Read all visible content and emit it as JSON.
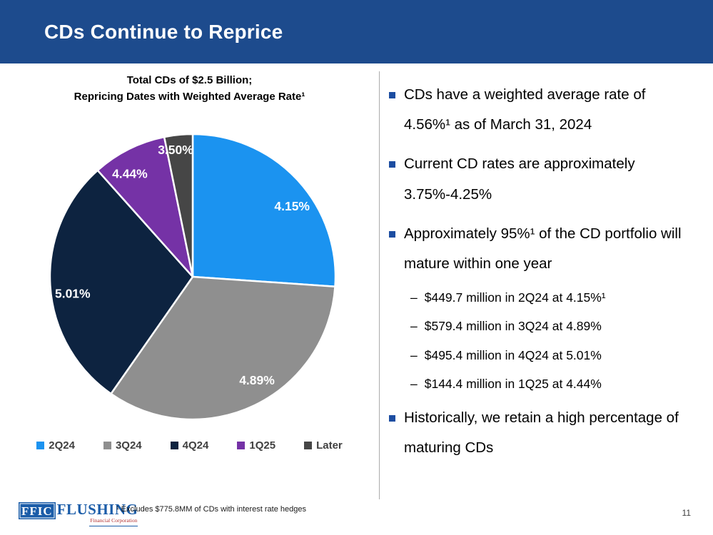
{
  "slide": {
    "title": "CDs Continue to Reprice",
    "page_number": "11",
    "footnote": "¹ Excludes $775.8MM of CDs with interest rate hedges"
  },
  "logo": {
    "abbr": "FFIC",
    "name": "FLUSHING",
    "subtitle": "Financial Corporation"
  },
  "chart_data": {
    "type": "pie",
    "title": [
      "Total CDs of $2.5 Billion;",
      "Repricing Dates with Weighted Average Rate¹"
    ],
    "categories": [
      "2Q24",
      "3Q24",
      "4Q24",
      "1Q25",
      "Later"
    ],
    "values_percent_share": [
      26.1,
      33.6,
      28.7,
      8.4,
      3.2
    ],
    "slice_labels": [
      "4.15%",
      "4.89%",
      "5.01%",
      "4.44%",
      "3.50%"
    ],
    "amounts_usd_millions": [
      449.7,
      579.4,
      495.4,
      144.4,
      null
    ],
    "colors": [
      "#1B93F0",
      "#8F8F8F",
      "#0D2340",
      "#7532A6",
      "#464646"
    ],
    "label_color": "#FFFFFF",
    "legend_position": "bottom",
    "start_angle_deg": 0,
    "clockwise": true,
    "label_radius_frac": [
      0.85,
      0.86,
      0.85,
      0.84,
      0.89
    ],
    "label_angle_offset_deg": [
      8,
      -6,
      -5,
      -5,
      -2
    ]
  },
  "bullets": {
    "marker_color": "#1C4DA1",
    "sub_marker": "–",
    "items": [
      {
        "text": "CDs have a weighted average rate of 4.56%¹ as of March 31, 2024",
        "subs": []
      },
      {
        "text": "Current CD rates are approximately 3.75%-4.25%",
        "subs": []
      },
      {
        "text": "Approximately 95%¹ of the CD portfolio will mature within one year",
        "subs": [
          "$449.7 million in 2Q24 at 4.15%¹",
          "$579.4 million in 3Q24 at 4.89%",
          "$495.4 million in 4Q24 at 5.01%",
          "$144.4 million in 1Q25 at 4.44%"
        ]
      },
      {
        "text": "Historically, we retain a high percentage of maturing CDs",
        "subs": []
      }
    ]
  },
  "colors": {
    "header_bg": "#1D4B8D",
    "divider": "#ABABAB",
    "legend_text": "#404040"
  }
}
